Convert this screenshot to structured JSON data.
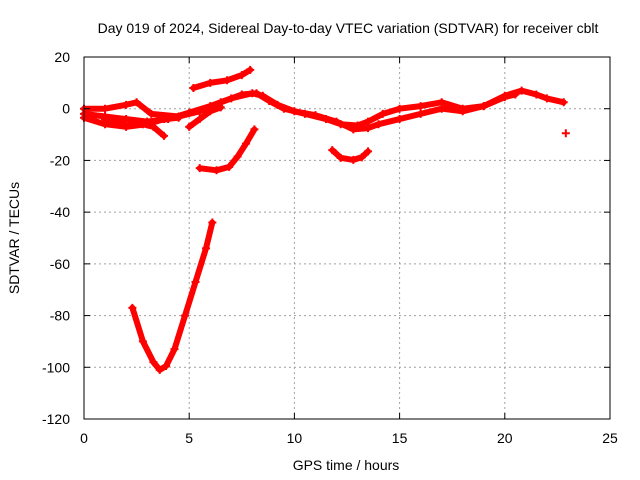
{
  "chart_data": {
    "type": "scatter",
    "title": "Day 019 of 2024, Sidereal Day-to-day VTEC variation (SDTVAR) for receiver cblt",
    "xlabel": "GPS time / hours",
    "ylabel": "SDTVAR / TECUs",
    "xlim": [
      0,
      25
    ],
    "ylim": [
      -120,
      20
    ],
    "xticks": [
      0,
      5,
      10,
      15,
      20,
      25
    ],
    "yticks": [
      -120,
      -100,
      -80,
      -60,
      -40,
      -20,
      0,
      20
    ],
    "grid": true,
    "marker": "+",
    "color": "#ff0000",
    "series": [
      {
        "points": [
          [
            0.0,
            0.0
          ],
          [
            1.0,
            0.0
          ],
          [
            2.0,
            1.5
          ],
          [
            2.5,
            2.5
          ],
          [
            3.2,
            -2.0
          ],
          [
            4.5,
            -3.0
          ],
          [
            5.5,
            -1.0
          ],
          [
            6.5,
            2.5
          ],
          [
            7.5,
            5.5
          ],
          [
            8.2,
            6.0
          ],
          [
            8.8,
            3.0
          ],
          [
            9.5,
            0.0
          ],
          [
            10.5,
            -2.0
          ],
          [
            11.5,
            -4.0
          ],
          [
            12.2,
            -6.0
          ],
          [
            13.0,
            -6.5
          ],
          [
            13.5,
            -5.0
          ],
          [
            14.2,
            -2.0
          ],
          [
            15.0,
            0.0
          ],
          [
            16.0,
            1.0
          ],
          [
            17.0,
            2.5
          ],
          [
            18.0,
            0.0
          ],
          [
            19.0,
            1.0
          ],
          [
            20.0,
            4.5
          ],
          [
            20.5,
            5.5
          ]
        ]
      },
      {
        "points": [
          [
            0.0,
            -2.0
          ],
          [
            1.0,
            -3.0
          ],
          [
            2.0,
            -4.0
          ],
          [
            3.0,
            -5.0
          ],
          [
            4.0,
            -4.0
          ],
          [
            5.0,
            -1.5
          ],
          [
            6.0,
            1.0
          ],
          [
            7.0,
            4.0
          ],
          [
            8.0,
            6.0
          ],
          [
            8.5,
            5.0
          ],
          [
            9.2,
            1.5
          ],
          [
            10.0,
            -1.0
          ],
          [
            11.0,
            -2.5
          ],
          [
            12.0,
            -5.0
          ],
          [
            12.8,
            -8.0
          ],
          [
            13.5,
            -7.5
          ],
          [
            14.0,
            -6.0
          ],
          [
            15.0,
            -4.0
          ],
          [
            16.0,
            -2.0
          ],
          [
            17.0,
            0.0
          ],
          [
            18.0,
            -1.0
          ],
          [
            19.0,
            1.0
          ],
          [
            20.0,
            5.0
          ],
          [
            20.8,
            7.0
          ],
          [
            21.5,
            5.5
          ],
          [
            22.0,
            4.0
          ],
          [
            22.8,
            2.5
          ]
        ]
      },
      {
        "points": [
          [
            0.0,
            -3.5
          ],
          [
            1.0,
            -6.0
          ],
          [
            2.0,
            -7.0
          ],
          [
            3.0,
            -6.0
          ],
          [
            3.8,
            -4.0
          ],
          [
            4.5,
            -3.5
          ]
        ]
      },
      {
        "points": [
          [
            1.0,
            -4.0
          ],
          [
            1.5,
            -5.0
          ],
          [
            2.0,
            -6.5
          ],
          [
            2.8,
            -6.0
          ],
          [
            3.3,
            -7.0
          ],
          [
            3.8,
            -10.5
          ]
        ]
      },
      {
        "points": [
          [
            5.0,
            -7.0
          ],
          [
            5.5,
            -4.0
          ],
          [
            6.0,
            -1.0
          ],
          [
            6.5,
            0.5
          ]
        ]
      },
      {
        "points": [
          [
            5.2,
            8.0
          ],
          [
            6.0,
            10.0
          ],
          [
            6.8,
            11.0
          ],
          [
            7.5,
            13.0
          ],
          [
            7.9,
            15.0
          ]
        ]
      },
      {
        "points": [
          [
            5.5,
            -23.0
          ],
          [
            6.3,
            -23.8
          ],
          [
            6.9,
            -22.5
          ],
          [
            7.3,
            -18.5
          ],
          [
            7.7,
            -13.5
          ],
          [
            8.1,
            -8.0
          ]
        ]
      },
      {
        "points": [
          [
            2.3,
            -77.0
          ],
          [
            2.8,
            -90.0
          ],
          [
            3.3,
            -98.0
          ],
          [
            3.6,
            -101.0
          ],
          [
            3.9,
            -99.5
          ],
          [
            4.3,
            -93.0
          ],
          [
            4.8,
            -80.0
          ],
          [
            5.3,
            -67.0
          ],
          [
            5.8,
            -54.0
          ],
          [
            6.1,
            -44.0
          ]
        ]
      },
      {
        "points": [
          [
            11.8,
            -16.0
          ],
          [
            12.2,
            -19.0
          ],
          [
            12.8,
            -19.8
          ],
          [
            13.2,
            -18.8
          ],
          [
            13.5,
            -16.5
          ]
        ]
      },
      {
        "points": [
          [
            22.9,
            -9.5
          ]
        ]
      }
    ]
  }
}
